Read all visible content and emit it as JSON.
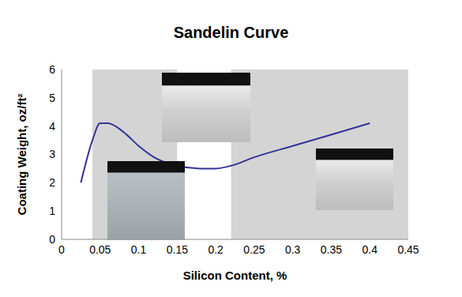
{
  "chart_data": {
    "type": "line",
    "title": "Sandelin Curve",
    "x_label": "Silicon Content, %",
    "y_label": "Coating Weight, oz/ft²",
    "x": [
      0.025,
      0.04,
      0.05,
      0.06,
      0.08,
      0.1,
      0.12,
      0.15,
      0.18,
      0.2,
      0.22,
      0.25,
      0.3,
      0.35,
      0.4
    ],
    "values": [
      2.0,
      3.5,
      4.1,
      4.1,
      3.8,
      3.3,
      2.9,
      2.6,
      2.5,
      2.5,
      2.6,
      2.9,
      3.3,
      3.7,
      4.1
    ],
    "color": "#333399",
    "xlim": [
      0,
      0.45
    ],
    "xticks": [
      0,
      0.05,
      0.1,
      0.15,
      0.2,
      0.25,
      0.3,
      0.35,
      0.4,
      0.45
    ],
    "ylim": [
      0,
      6
    ],
    "yticks": [
      0,
      1,
      2,
      3,
      4,
      5,
      6
    ],
    "shaded_ranges": [
      [
        0.04,
        0.15
      ],
      [
        0.22,
        0.45
      ]
    ],
    "grid": false
  }
}
